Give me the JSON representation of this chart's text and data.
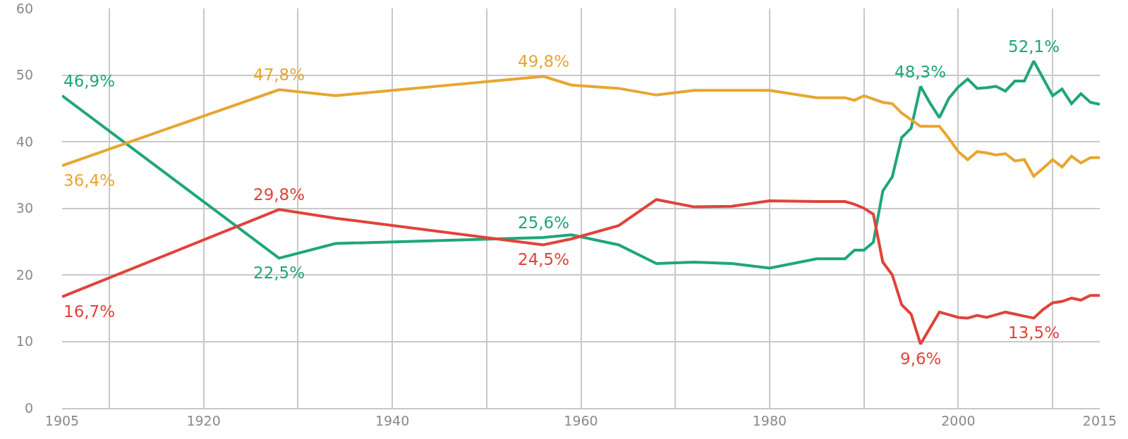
{
  "chart_data": {
    "type": "line",
    "x": [
      1905,
      1928,
      1934,
      1956,
      1959,
      1964,
      1968,
      1972,
      1976,
      1980,
      1985,
      1988,
      1989,
      1990,
      1991,
      1992,
      1993,
      1994,
      1995,
      1996,
      1997,
      1998,
      1999,
      2000,
      2001,
      2002,
      2003,
      2004,
      2005,
      2006,
      2007,
      2008,
      2009,
      2010,
      2011,
      2012,
      2013,
      2014,
      2015
    ],
    "series": [
      {
        "color": "#1fa67a",
        "values": [
          46.9,
          22.5,
          24.7,
          25.6,
          26.0,
          24.5,
          21.7,
          21.9,
          21.7,
          21.0,
          22.4,
          22.4,
          23.7,
          23.7,
          24.9,
          32.6,
          34.7,
          40.6,
          42.0,
          48.3,
          45.8,
          43.6,
          46.5,
          48.2,
          49.4,
          48.0,
          48.1,
          48.3,
          47.6,
          49.1,
          49.1,
          52.1,
          49.5,
          46.9,
          47.9,
          45.7,
          47.2,
          45.9,
          45.6
        ],
        "value_labels": [
          "46,9%",
          "22,5%",
          null,
          "25,6%",
          null,
          null,
          null,
          null,
          null,
          null,
          null,
          null,
          null,
          null,
          null,
          null,
          null,
          null,
          null,
          "48,3%",
          null,
          null,
          null,
          null,
          null,
          null,
          null,
          null,
          null,
          null,
          null,
          "52,1%",
          null,
          null,
          null,
          null,
          null,
          null,
          null
        ]
      },
      {
        "color": "#e8a630",
        "values": [
          36.4,
          47.8,
          46.9,
          49.8,
          48.5,
          48.0,
          47.0,
          47.7,
          47.7,
          47.7,
          46.6,
          46.6,
          46.2,
          46.9,
          46.4,
          45.9,
          45.7,
          44.3,
          43.3,
          42.3,
          42.3,
          42.3,
          40.5,
          38.5,
          37.3,
          38.5,
          38.3,
          38.0,
          38.2,
          37.1,
          37.3,
          34.8,
          36.0,
          37.3,
          36.2,
          37.8,
          36.8,
          37.6,
          37.6
        ],
        "value_labels": [
          "36,4%",
          "47,8%",
          null,
          "49,8%",
          null,
          null,
          null,
          null,
          null,
          null,
          null,
          null,
          null,
          null,
          null,
          null,
          null,
          null,
          null,
          null,
          null,
          null,
          null,
          null,
          null,
          null,
          null,
          null,
          null,
          null,
          null,
          null,
          null,
          null,
          null,
          null,
          null,
          null,
          null
        ]
      },
      {
        "color": "#e0433a",
        "values": [
          16.7,
          29.8,
          28.5,
          24.5,
          25.4,
          27.4,
          31.3,
          30.2,
          30.3,
          31.1,
          31.0,
          31.0,
          30.6,
          30.0,
          29.1,
          21.9,
          20.0,
          15.5,
          14.1,
          9.6,
          12.0,
          14.4,
          14.0,
          13.6,
          13.5,
          13.9,
          13.6,
          14.0,
          14.4,
          14.1,
          13.8,
          13.5,
          14.8,
          15.8,
          16.0,
          16.5,
          16.2,
          16.9,
          16.9
        ],
        "value_labels": [
          "16,7%",
          "29,8%",
          null,
          "24,5%",
          null,
          null,
          null,
          null,
          null,
          null,
          null,
          null,
          null,
          null,
          null,
          null,
          null,
          null,
          null,
          "9,6%",
          null,
          null,
          null,
          null,
          null,
          null,
          null,
          null,
          null,
          null,
          null,
          "13,5%",
          null,
          null,
          null,
          null,
          null,
          null,
          null
        ]
      }
    ],
    "xlim": [
      1905,
      2015
    ],
    "xticks": [
      1905,
      {
        "value": 1910,
        "label": null
      },
      1920,
      {
        "value": 1930,
        "label": null
      },
      1940,
      {
        "value": 1950,
        "label": null
      },
      1960,
      {
        "value": 1970,
        "label": null
      },
      1980,
      {
        "value": 1990,
        "label": null
      },
      2000,
      {
        "value": 2010,
        "label": null
      },
      2015
    ],
    "ylim": [
      0,
      60
    ],
    "yticks": [
      0,
      10,
      20,
      30,
      40,
      50,
      60
    ],
    "grid": true,
    "marker": "none",
    "line_style": "solid"
  }
}
